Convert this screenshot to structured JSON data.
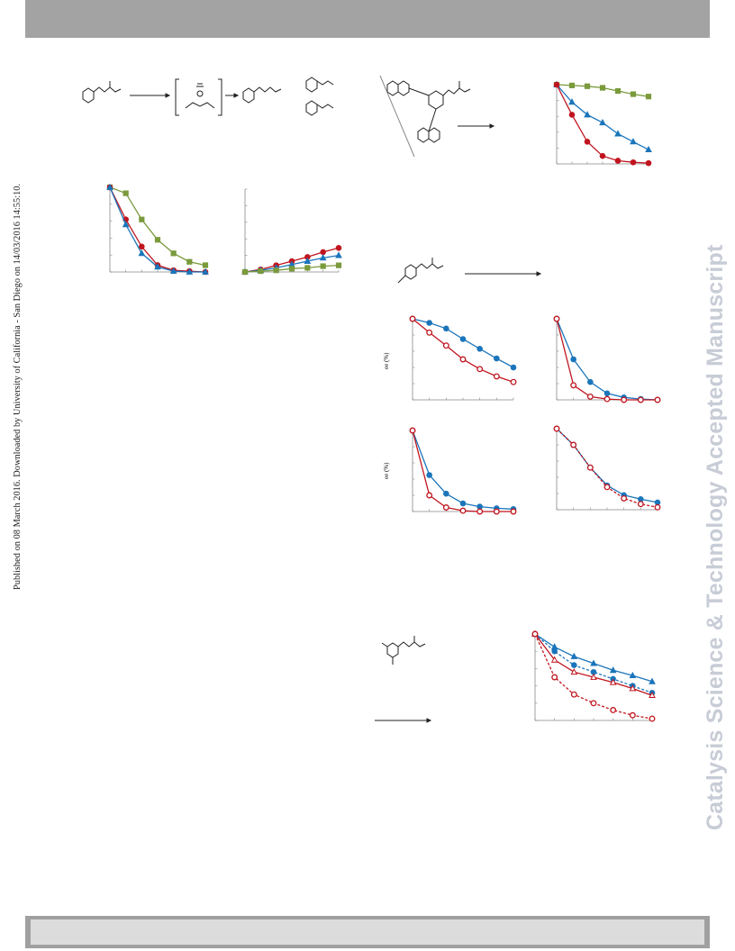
{
  "header": {
    "bar_color": "#a3a3a3"
  },
  "footer": {
    "bar_color": "#a0a0a0"
  },
  "side_note": {
    "text": "Published on 08 March 2016. Downloaded by University of California - San Diego on 14/03/2016 14:55:10."
  },
  "watermark": {
    "text": "Catalysis Science & Technology Accepted Manuscript"
  },
  "colors": {
    "red": "#c0151e",
    "blue": "#1b75bb",
    "green": "#7a9a3c",
    "gray": "#888888"
  },
  "chart_data": [
    {
      "type": "line",
      "panel": "top-left-A",
      "x": [
        0,
        1,
        2,
        3,
        4,
        5,
        6
      ],
      "ylim": [
        0,
        100
      ],
      "series": [
        {
          "values": [
            100,
            93,
            62,
            38,
            22,
            12,
            8
          ],
          "marker": "square",
          "color": "green"
        },
        {
          "values": [
            100,
            62,
            30,
            8,
            2,
            1,
            0
          ],
          "marker": "circle",
          "color": "red"
        },
        {
          "values": [
            100,
            56,
            22,
            6,
            1,
            0,
            0
          ],
          "marker": "triangle",
          "color": "blue"
        }
      ]
    },
    {
      "type": "line",
      "panel": "top-left-B",
      "x": [
        0,
        1,
        2,
        3,
        4,
        5,
        6
      ],
      "ylim": [
        0,
        100
      ],
      "series": [
        {
          "values": [
            0,
            3,
            8,
            13,
            18,
            24,
            29
          ],
          "marker": "circle",
          "color": "red"
        },
        {
          "values": [
            0,
            2,
            5,
            9,
            13,
            17,
            20
          ],
          "marker": "triangle",
          "color": "blue"
        },
        {
          "values": [
            0,
            1,
            2,
            4,
            5,
            7,
            8
          ],
          "marker": "square",
          "color": "green"
        }
      ]
    },
    {
      "type": "line",
      "panel": "top-right",
      "x": [
        0,
        1,
        2,
        3,
        4,
        5,
        6
      ],
      "ylim": [
        0,
        100
      ],
      "series": [
        {
          "values": [
            100,
            99,
            98,
            96,
            92,
            88,
            85
          ],
          "marker": "square",
          "color": "green"
        },
        {
          "values": [
            100,
            78,
            62,
            52,
            38,
            28,
            18
          ],
          "marker": "triangle",
          "color": "blue"
        },
        {
          "values": [
            100,
            62,
            28,
            10,
            4,
            2,
            1
          ],
          "marker": "circle",
          "color": "red"
        }
      ]
    },
    {
      "type": "line",
      "panel": "middle-1",
      "ylabel": "ee (%)",
      "x": [
        0,
        1,
        2,
        3,
        4,
        5,
        6
      ],
      "ylim": [
        0,
        100
      ],
      "series": [
        {
          "values": [
            100,
            95,
            88,
            75,
            63,
            51,
            40
          ],
          "marker": "circle",
          "color": "blue"
        },
        {
          "values": [
            100,
            83,
            67,
            50,
            38,
            29,
            22
          ],
          "marker": "open-circle",
          "color": "red"
        }
      ]
    },
    {
      "type": "line",
      "panel": "middle-2",
      "x": [
        0,
        1,
        2,
        3,
        4,
        5,
        6
      ],
      "ylim": [
        0,
        100
      ],
      "series": [
        {
          "values": [
            100,
            50,
            22,
            8,
            3,
            1,
            0
          ],
          "marker": "circle",
          "color": "blue"
        },
        {
          "values": [
            100,
            18,
            4,
            1,
            0,
            0,
            0
          ],
          "marker": "open-circle",
          "color": "red"
        }
      ]
    },
    {
      "type": "line",
      "panel": "middle-3",
      "ylabel": "ee (%)",
      "x": [
        0,
        1,
        2,
        3,
        4,
        5,
        6
      ],
      "ylim": [
        0,
        100
      ],
      "series": [
        {
          "values": [
            100,
            45,
            22,
            10,
            6,
            4,
            3
          ],
          "marker": "circle",
          "color": "blue"
        },
        {
          "values": [
            100,
            20,
            5,
            1,
            0,
            0,
            0
          ],
          "marker": "open-circle",
          "color": "red"
        }
      ]
    },
    {
      "type": "line",
      "panel": "middle-4",
      "x": [
        0,
        1,
        2,
        3,
        4,
        5,
        6
      ],
      "ylim": [
        0,
        100
      ],
      "series": [
        {
          "values": [
            100,
            80,
            52,
            30,
            18,
            13,
            9
          ],
          "marker": "circle",
          "color": "blue"
        },
        {
          "values": [
            100,
            80,
            52,
            28,
            14,
            7,
            3
          ],
          "marker": "open-circle",
          "color": "red",
          "dashed": true
        }
      ]
    },
    {
      "type": "line",
      "panel": "bottom-right",
      "x": [
        0,
        1,
        2,
        3,
        4,
        5,
        6
      ],
      "ylim": [
        0,
        100
      ],
      "series": [
        {
          "values": [
            100,
            85,
            74,
            66,
            58,
            52,
            45
          ],
          "marker": "triangle",
          "color": "blue"
        },
        {
          "values": [
            100,
            80,
            64,
            56,
            48,
            40,
            32
          ],
          "marker": "circle",
          "color": "blue",
          "dashed": true
        },
        {
          "values": [
            100,
            70,
            56,
            50,
            44,
            37,
            29
          ],
          "marker": "open-triangle",
          "color": "red"
        },
        {
          "values": [
            100,
            50,
            30,
            20,
            12,
            6,
            2
          ],
          "marker": "open-circle",
          "color": "red",
          "dashed": true
        }
      ]
    }
  ]
}
